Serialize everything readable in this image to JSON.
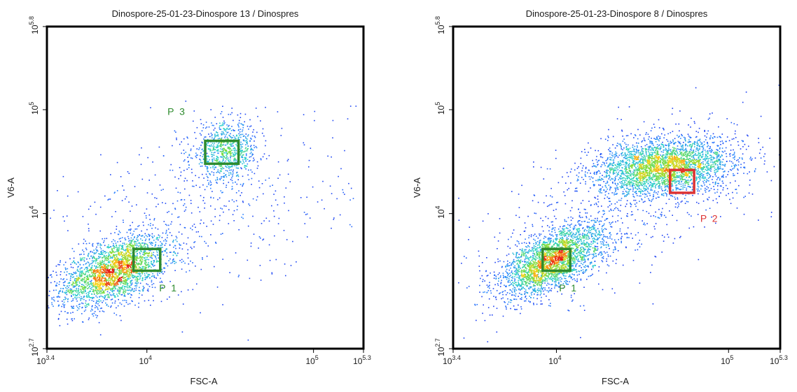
{
  "chart_data": [
    {
      "type": "scatter",
      "title": "Dinospore-25-01-23-Dinospore 13 / Dinospres",
      "xlabel": "FSC-A",
      "ylabel": "V6-A",
      "xscale": "log",
      "yscale": "log",
      "xlim_log10": [
        3.4,
        5.3
      ],
      "ylim_log10": [
        2.7,
        5.8
      ],
      "xticks": [
        {
          "base": "10",
          "exp": "3.4",
          "log10": 3.4
        },
        {
          "base": "10",
          "exp": "4",
          "log10": 4.0
        },
        {
          "base": "10",
          "exp": "5",
          "log10": 5.0
        },
        {
          "base": "10",
          "exp": "5.3",
          "log10": 5.3
        }
      ],
      "yticks": [
        {
          "base": "10",
          "exp": "2.7",
          "log10": 2.7
        },
        {
          "base": "10",
          "exp": "4",
          "log10": 4.0
        },
        {
          "base": "10",
          "exp": "5",
          "log10": 5.0
        },
        {
          "base": "10",
          "exp": "5.8",
          "log10": 5.8
        }
      ],
      "populations": [
        {
          "center_log10": [
            3.8,
            3.45
          ],
          "spread_log10": [
            0.16,
            0.17
          ],
          "tilt": 0.5,
          "count": 2600
        },
        {
          "center_log10": [
            4.47,
            4.6
          ],
          "spread_log10": [
            0.1,
            0.14
          ],
          "tilt": 0.1,
          "count": 800
        },
        {
          "center_log10": [
            4.3,
            4.0
          ],
          "spread_log10": [
            0.45,
            0.45
          ],
          "tilt": 0.4,
          "count": 500
        }
      ],
      "gates": [
        {
          "name": "P 1",
          "color": "#2e8b2e",
          "x_log10": [
            3.92,
            4.08
          ],
          "y_log10": [
            3.45,
            3.66
          ],
          "label_at_log10": [
            4.13,
            3.25
          ]
        },
        {
          "name": "P 3",
          "color": "#2e8b2e",
          "x_log10": [
            4.35,
            4.55
          ],
          "y_log10": [
            4.48,
            4.7
          ],
          "label_at_log10": [
            4.18,
            4.95
          ]
        }
      ]
    },
    {
      "type": "scatter",
      "title": "Dinospore-25-01-23-Dinospore 8 / Dinospres",
      "xlabel": "FSC-A",
      "ylabel": "V6-A",
      "xscale": "log",
      "yscale": "log",
      "xlim_log10": [
        3.4,
        5.3
      ],
      "ylim_log10": [
        2.7,
        5.8
      ],
      "xticks": [
        {
          "base": "10",
          "exp": "3.4",
          "log10": 3.4
        },
        {
          "base": "10",
          "exp": "4",
          "log10": 4.0
        },
        {
          "base": "10",
          "exp": "5",
          "log10": 5.0
        },
        {
          "base": "10",
          "exp": "5.3",
          "log10": 5.3
        }
      ],
      "yticks": [
        {
          "base": "10",
          "exp": "2.7",
          "log10": 2.7
        },
        {
          "base": "10",
          "exp": "4",
          "log10": 4.0
        },
        {
          "base": "10",
          "exp": "5",
          "log10": 5.0
        },
        {
          "base": "10",
          "exp": "5.8",
          "log10": 5.8
        }
      ],
      "populations": [
        {
          "center_log10": [
            3.97,
            3.55
          ],
          "spread_log10": [
            0.15,
            0.17
          ],
          "tilt": 0.6,
          "count": 2600
        },
        {
          "center_log10": [
            4.62,
            4.45
          ],
          "spread_log10": [
            0.2,
            0.14
          ],
          "tilt": 0.2,
          "count": 3000
        },
        {
          "center_log10": [
            4.3,
            4.0
          ],
          "spread_log10": [
            0.42,
            0.45
          ],
          "tilt": 0.6,
          "count": 700
        }
      ],
      "gates": [
        {
          "name": "P 1",
          "color": "#2e8b2e",
          "x_log10": [
            3.92,
            4.08
          ],
          "y_log10": [
            3.45,
            3.66
          ],
          "label_at_log10": [
            4.07,
            3.25
          ]
        },
        {
          "name": "P 2",
          "color": "#dd3333",
          "x_log10": [
            4.66,
            4.8
          ],
          "y_log10": [
            4.2,
            4.42
          ],
          "label_at_log10": [
            4.89,
            3.92
          ]
        }
      ]
    }
  ]
}
